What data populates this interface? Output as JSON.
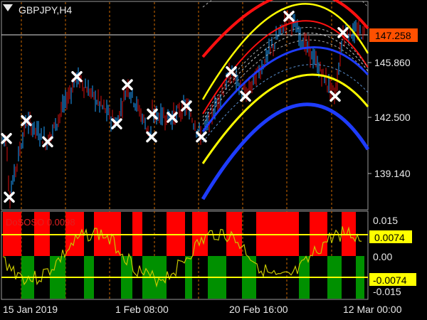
{
  "chart_title": "GBPJPY,H4",
  "indicator_label": "DoSOSO 0.0098",
  "price_axis": {
    "ticks": [
      "145.860",
      "142.500",
      "139.140"
    ],
    "current_price": "147.258"
  },
  "indicator_axis": {
    "ticks": [
      "0.015",
      "0.00",
      "-0.015"
    ],
    "upper_level": "0.0074",
    "lower_level": "-0.0074"
  },
  "time_axis": {
    "labels": [
      "15 Jan 2019",
      "1 Feb 08:00",
      "20 Feb 16:00",
      "12 Mar 00:00"
    ]
  },
  "colors": {
    "background": "#000000",
    "bull_candle": "#1ea0ff",
    "bear_candle": "#d81010",
    "marker": "#ffffff",
    "band_red": "#ff1010",
    "band_yellow": "#ffff00",
    "band_blue": "#1e3cff",
    "hist_green": "#009000",
    "hist_red": "#ff0000",
    "osc_line": "#c8c800",
    "level_line": "#ffff00",
    "grid_vertical": "#d06a00",
    "price_badge": "#ff5000"
  },
  "chart_data": {
    "type": "line",
    "symbol": "GBPJPY",
    "timeframe": "H4",
    "price_ticks": [
      145.86,
      142.5,
      139.14
    ],
    "current_price": 147.258,
    "indicator": {
      "name": "DoSOSO",
      "value": 0.0098,
      "levels": [
        0.0074,
        -0.0074
      ],
      "ticks": [
        0.015,
        0.0,
        -0.015
      ]
    },
    "x_labels": [
      "15 Jan 2019",
      "1 Feb 08:00",
      "20 Feb 16:00",
      "12 Mar 00:00"
    ],
    "signal_markers": [
      {
        "time_index": 0,
        "price": 141.2
      },
      {
        "time_index": 1,
        "price": 137.6
      },
      {
        "time_index": 2,
        "price": 142.3
      },
      {
        "time_index": 3,
        "price": 141.0
      },
      {
        "time_index": 4,
        "price": 145.0
      },
      {
        "time_index": 5,
        "price": 142.1
      },
      {
        "time_index": 6,
        "price": 144.5
      },
      {
        "time_index": 7,
        "price": 142.7
      },
      {
        "time_index": 8,
        "price": 141.3
      },
      {
        "time_index": 9,
        "price": 142.5
      },
      {
        "time_index": 10,
        "price": 143.2
      },
      {
        "time_index": 11,
        "price": 141.3
      },
      {
        "time_index": 12,
        "price": 145.3
      },
      {
        "time_index": 13,
        "price": 143.8
      },
      {
        "time_index": 14,
        "price": 148.7
      },
      {
        "time_index": 15,
        "price": 147.7
      },
      {
        "time_index": 16,
        "price": 143.8
      }
    ]
  }
}
